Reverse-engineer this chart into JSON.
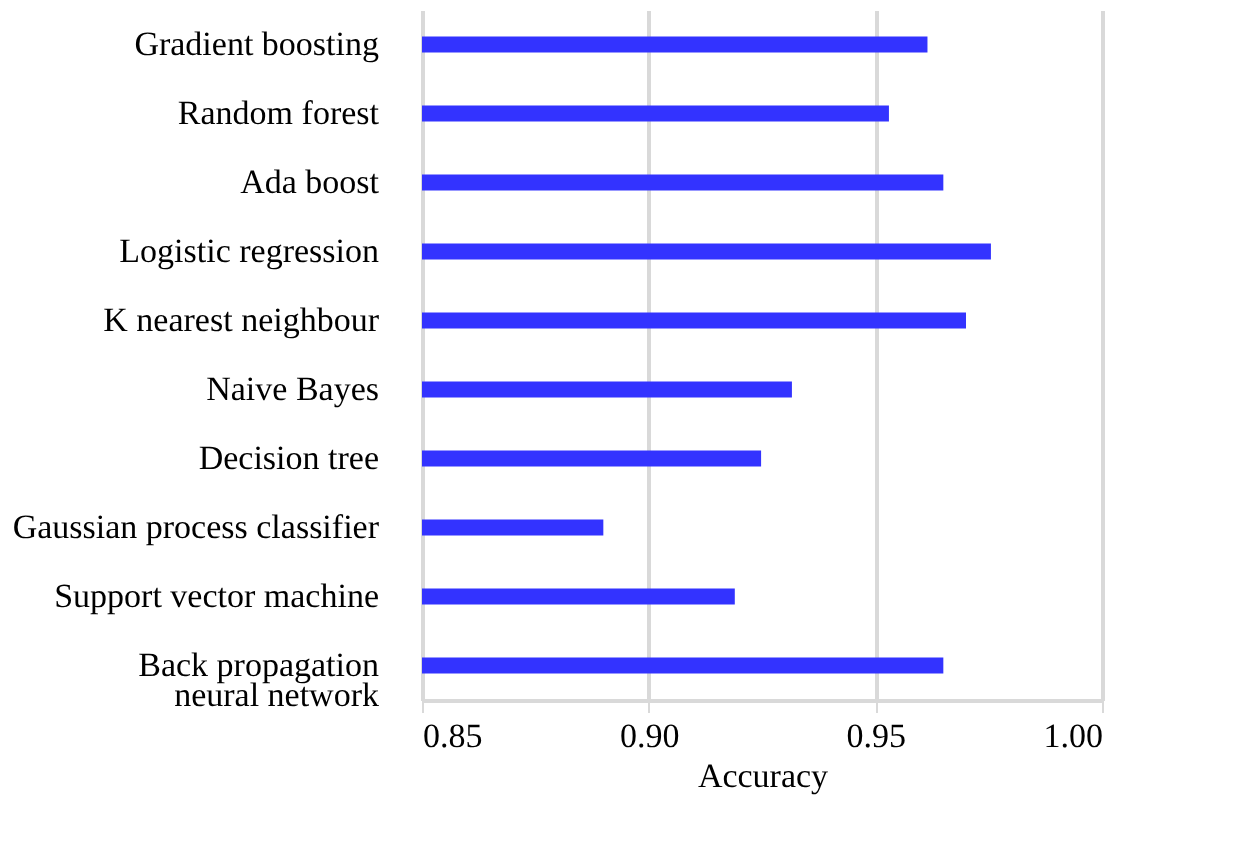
{
  "chart_data": {
    "type": "bar",
    "orientation": "horizontal",
    "xlabel": "Accuracy",
    "categories": [
      "Gradient boosting",
      "Random forest",
      "Ada boost",
      "Logistic regression",
      "K nearest neighbour",
      "Naive Bayes",
      "Decision tree",
      "Gaussian process classifier",
      "Support vector machine",
      "Back propagation\nneural network"
    ],
    "values": [
      0.9615,
      0.953,
      0.965,
      0.9755,
      0.97,
      0.9316,
      0.9248,
      0.89,
      0.919,
      0.965
    ],
    "color": "#3333ff",
    "xlim": [
      0.85,
      1.0
    ],
    "xticks": [
      {
        "value": 0.85,
        "label": "0.85"
      },
      {
        "value": 0.9,
        "label": "0.90"
      },
      {
        "value": 0.95,
        "label": "0.95"
      },
      {
        "value": 1.0,
        "label": "1.00"
      }
    ],
    "grid": "x"
  }
}
